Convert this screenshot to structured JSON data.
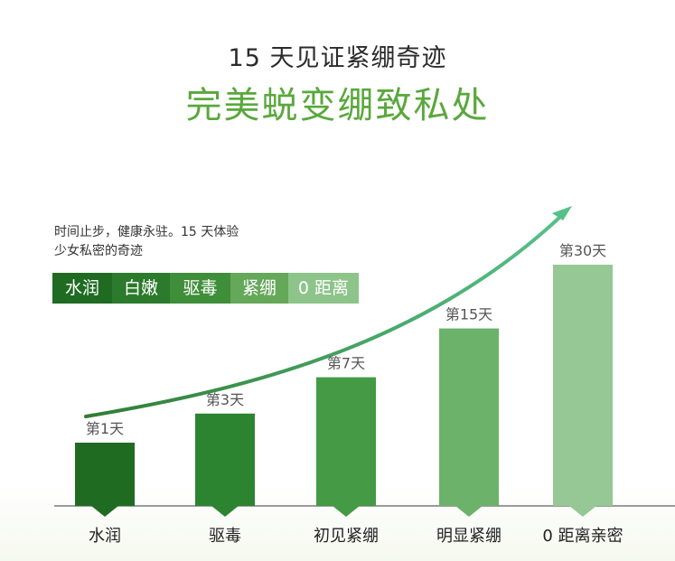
{
  "header": {
    "title": "15 天见证紧绷奇迹",
    "subtitle": "完美蜕变绷致私处"
  },
  "intro": {
    "line1": "时间止步，健康永驻。15 天体验",
    "line2": "少女私密的奇迹"
  },
  "tags": [
    {
      "label": "水润",
      "color": "#1f6b22"
    },
    {
      "label": "白嫩",
      "color": "#2c7a2c"
    },
    {
      "label": "驱毒",
      "color": "#3f8e3a"
    },
    {
      "label": "紧绷",
      "color": "#65a85a"
    },
    {
      "label": "0 距离",
      "color": "#8dc48a"
    }
  ],
  "chart_data": {
    "type": "bar",
    "categories": [
      "水润",
      "驱毒",
      "初见紧绷",
      "明显紧绷",
      "0 距离亲密"
    ],
    "data_labels": [
      "第1天",
      "第3天",
      "第7天",
      "第15天",
      "第30天"
    ],
    "values": [
      1,
      3,
      7,
      15,
      30
    ],
    "colors": [
      "#1f6b22",
      "#2c8430",
      "#449a45",
      "#6cb26a",
      "#95c894"
    ],
    "trend_arrow": true,
    "grid": false
  }
}
